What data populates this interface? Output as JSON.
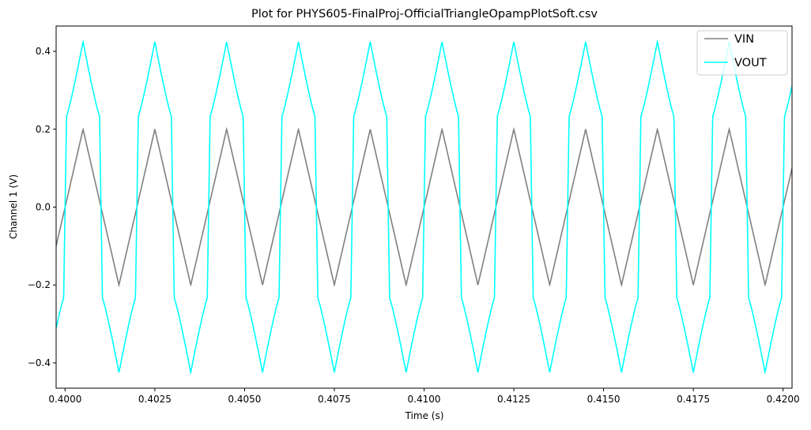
{
  "chart_data": {
    "type": "line",
    "title": "Plot for PHYS605-FinalProj-OfficialTriangleOpampPlotSoft.csv",
    "xlabel": "Time (s)",
    "ylabel": "Channel 1 (V)",
    "xlim": [
      0.39975,
      0.42025
    ],
    "ylim": [
      -0.465,
      0.465
    ],
    "xticks": [
      0.4,
      0.4025,
      0.405,
      0.4075,
      0.41,
      0.4125,
      0.415,
      0.4175,
      0.42
    ],
    "xtick_labels": [
      "0.4000",
      "0.4025",
      "0.4050",
      "0.4075",
      "0.4100",
      "0.4125",
      "0.4150",
      "0.4175",
      "0.4200"
    ],
    "yticks": [
      -0.4,
      -0.2,
      0.0,
      0.2,
      0.4
    ],
    "ytick_labels": [
      "−0.4",
      "−0.2",
      "0.0",
      "0.2",
      "0.4"
    ],
    "grid": false,
    "legend_position": "top-right",
    "series": [
      {
        "name": "VIN",
        "color": "#808080",
        "shape": "triangle",
        "amplitude": 0.2,
        "period": 0.002,
        "peak_times": [
          0.4005,
          0.4025,
          0.4045,
          0.4065,
          0.4085,
          0.4105,
          0.4125,
          0.4145,
          0.4165,
          0.4185
        ],
        "trough_times": [
          0.4015,
          0.4035,
          0.4055,
          0.4075,
          0.4095,
          0.4115,
          0.4135,
          0.4155,
          0.4175,
          0.4195
        ]
      },
      {
        "name": "VOUT",
        "color": "#00ffff",
        "shape": "soft-clipped triangle",
        "amplitude": 0.425,
        "period": 0.002,
        "peak_times": [
          0.4005,
          0.4025,
          0.4045,
          0.4065,
          0.4085,
          0.4105,
          0.4125,
          0.4145,
          0.4165,
          0.4185
        ],
        "trough_times": [
          0.4015,
          0.4035,
          0.4055,
          0.4075,
          0.4095,
          0.4115,
          0.4135,
          0.4155,
          0.4175,
          0.4195
        ]
      }
    ]
  }
}
